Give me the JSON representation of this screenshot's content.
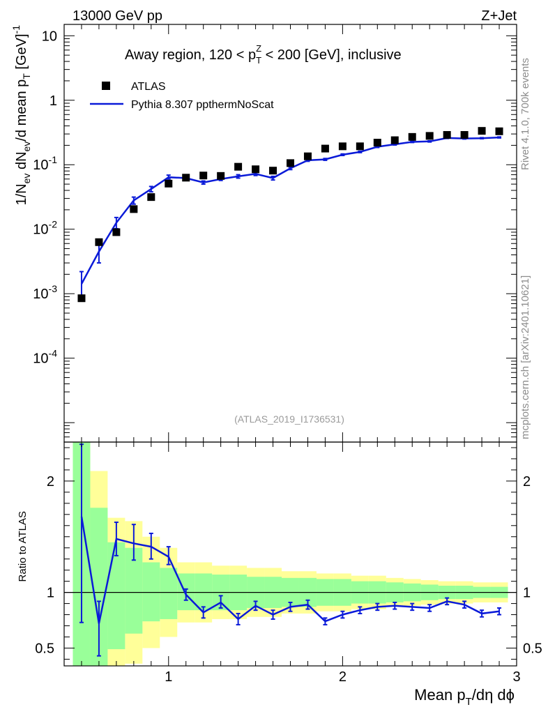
{
  "header": {
    "left": "13000 GeV pp",
    "right": "Z+Jet"
  },
  "plot_title_parts": {
    "pre": "Away region, 120 < p",
    "sup": "Z",
    "sub": "T",
    "post": " < 200 [GeV], inclusive"
  },
  "analysis_id": "(ATLAS_2019_I1736531)",
  "side_labels": {
    "top": "Rivet 4.1.0,  700k events",
    "bottom": "mcplots.cern.ch [arXiv:2401.10621]"
  },
  "colors": {
    "mc": "#0a1ad8",
    "data": "#000000",
    "band_inner": "#99ff99",
    "band_outer": "#ffff99"
  },
  "chart_data": [
    {
      "type": "scatter",
      "panel": "main",
      "yscale": "log",
      "xlim": [
        0.4,
        3.0
      ],
      "ylim": [
        5e-06,
        15
      ],
      "ylabel_parts": [
        "1/N",
        "ev",
        " dN",
        "ev",
        "/d mean p",
        "T",
        " [GeV]",
        "-1"
      ],
      "yticks": [
        {
          "v": 0.0001,
          "base": "10",
          "exp": "-4"
        },
        {
          "v": 0.001,
          "base": "10",
          "exp": "-3"
        },
        {
          "v": 0.01,
          "base": "10",
          "exp": "-2"
        },
        {
          "v": 0.1,
          "base": "10",
          "exp": "-1"
        },
        {
          "v": 1,
          "base": "1",
          "exp": ""
        },
        {
          "v": 10,
          "base": "10",
          "exp": ""
        }
      ],
      "legend": [
        {
          "name": "ATLAS",
          "marker": "square"
        },
        {
          "name": "Pythia 8.307 ppthermNoScat",
          "marker": "line"
        }
      ],
      "legend_position": "top-left",
      "x": [
        0.5,
        0.6,
        0.7,
        0.8,
        0.9,
        1.0,
        1.1,
        1.2,
        1.3,
        1.4,
        1.5,
        1.6,
        1.7,
        1.8,
        1.9,
        2.0,
        2.1,
        2.2,
        2.3,
        2.4,
        2.5,
        2.6,
        2.7,
        2.8,
        2.9
      ],
      "series": [
        {
          "name": "ATLAS",
          "values": [
            0.00085,
            0.0063,
            0.009,
            0.0205,
            0.0315,
            0.051,
            0.063,
            0.068,
            0.067,
            0.093,
            0.085,
            0.081,
            0.106,
            0.135,
            0.178,
            0.193,
            0.193,
            0.22,
            0.24,
            0.27,
            0.28,
            0.29,
            0.29,
            0.335,
            0.33
          ]
        },
        {
          "name": "Pythia 8.307 ppthermNoScat",
          "values": [
            0.00142,
            0.0045,
            0.0126,
            0.028,
            0.042,
            0.064,
            0.062,
            0.053,
            0.06,
            0.066,
            0.072,
            0.062,
            0.088,
            0.117,
            0.121,
            0.143,
            0.158,
            0.19,
            0.207,
            0.226,
            0.23,
            0.26,
            0.255,
            0.258,
            0.265
          ],
          "err_low": [
            0.00058,
            0.0015,
            0.0024,
            0.0035,
            0.004,
            0.004,
            0.003,
            0.003,
            0.003,
            0.004,
            0.004,
            0.004,
            0.004,
            0.004,
            0.004,
            0.004,
            0.004,
            0.005,
            0.005,
            0.005,
            0.005,
            0.005,
            0.005,
            0.005,
            0.005
          ],
          "err_high": [
            0.00078,
            0.0012,
            0.0026,
            0.0035,
            0.004,
            0.005,
            0.003,
            0.003,
            0.003,
            0.004,
            0.004,
            0.004,
            0.004,
            0.004,
            0.004,
            0.004,
            0.004,
            0.005,
            0.005,
            0.005,
            0.005,
            0.005,
            0.005,
            0.005,
            0.005
          ]
        }
      ]
    },
    {
      "type": "line",
      "panel": "ratio",
      "xlim": [
        0.4,
        3.0
      ],
      "ylim": [
        0.34,
        2.35
      ],
      "ylabel": "Ratio to ATLAS",
      "xlabel_parts": [
        "Mean p",
        "T",
        "/dη dϕ"
      ],
      "xticks": [
        {
          "v": 1,
          "label": "1"
        },
        {
          "v": 2,
          "label": "2"
        },
        {
          "v": 3,
          "label": "3"
        }
      ],
      "yticks": [
        {
          "v": 0.5,
          "label": "0.5"
        },
        {
          "v": 1,
          "label": "1"
        },
        {
          "v": 2,
          "label": "2"
        }
      ],
      "x": [
        0.5,
        0.6,
        0.7,
        0.8,
        0.9,
        1.0,
        1.1,
        1.2,
        1.3,
        1.4,
        1.5,
        1.6,
        1.7,
        1.8,
        1.9,
        2.0,
        2.1,
        2.2,
        2.3,
        2.4,
        2.5,
        2.6,
        2.7,
        2.8,
        2.9
      ],
      "bins": [
        [
          0.45,
          0.55
        ],
        [
          0.55,
          0.65
        ],
        [
          0.65,
          0.75
        ],
        [
          0.75,
          0.85
        ],
        [
          0.85,
          0.95
        ],
        [
          0.95,
          1.05
        ],
        [
          1.05,
          1.15
        ],
        [
          1.15,
          1.25
        ],
        [
          1.25,
          1.35
        ],
        [
          1.35,
          1.45
        ],
        [
          1.45,
          1.55
        ],
        [
          1.55,
          1.65
        ],
        [
          1.65,
          1.75
        ],
        [
          1.75,
          1.85
        ],
        [
          1.85,
          1.95
        ],
        [
          1.95,
          2.05
        ],
        [
          2.05,
          2.15
        ],
        [
          2.15,
          2.25
        ],
        [
          2.25,
          2.35
        ],
        [
          2.35,
          2.45
        ],
        [
          2.45,
          2.55
        ],
        [
          2.55,
          2.65
        ],
        [
          2.65,
          2.75
        ],
        [
          2.75,
          2.85
        ],
        [
          2.85,
          2.95
        ]
      ],
      "series": [
        {
          "name": "Pythia 8.307 ppthermNoScat",
          "values": [
            1.68,
            0.72,
            1.48,
            1.44,
            1.41,
            1.32,
            0.98,
            0.82,
            0.91,
            0.76,
            0.88,
            0.8,
            0.87,
            0.89,
            0.74,
            0.8,
            0.84,
            0.87,
            0.88,
            0.87,
            0.86,
            0.92,
            0.89,
            0.81,
            0.83
          ],
          "err_low": [
            0.95,
            0.29,
            0.15,
            0.15,
            0.11,
            0.07,
            0.05,
            0.05,
            0.05,
            0.05,
            0.04,
            0.04,
            0.04,
            0.04,
            0.03,
            0.03,
            0.03,
            0.03,
            0.03,
            0.03,
            0.03,
            0.03,
            0.03,
            0.03,
            0.03
          ],
          "err_high": [
            0.65,
            0.2,
            0.15,
            0.17,
            0.12,
            0.09,
            0.05,
            0.05,
            0.06,
            0.05,
            0.04,
            0.04,
            0.04,
            0.04,
            0.03,
            0.03,
            0.03,
            0.03,
            0.03,
            0.03,
            0.03,
            0.03,
            0.03,
            0.03,
            0.03
          ]
        },
        {
          "name": "ATLAS stat. uncertainty band",
          "low": [
            0.27,
            0.27,
            0.49,
            0.63,
            0.74,
            0.76,
            0.84,
            0.84,
            0.84,
            0.84,
            0.86,
            0.86,
            0.87,
            0.87,
            0.88,
            0.88,
            0.9,
            0.9,
            0.91,
            0.92,
            0.93,
            0.94,
            0.94,
            0.95,
            0.95
          ],
          "high": [
            2.35,
            1.76,
            1.45,
            1.4,
            1.27,
            1.22,
            1.17,
            1.17,
            1.16,
            1.16,
            1.14,
            1.14,
            1.13,
            1.13,
            1.12,
            1.12,
            1.1,
            1.1,
            1.09,
            1.08,
            1.07,
            1.06,
            1.06,
            1.05,
            1.05
          ]
        },
        {
          "name": "ATLAS total uncertainty band",
          "low": [
            0.27,
            0.27,
            0.27,
            0.36,
            0.5,
            0.6,
            0.73,
            0.73,
            0.76,
            0.76,
            0.78,
            0.78,
            0.81,
            0.81,
            0.83,
            0.83,
            0.85,
            0.85,
            0.87,
            0.88,
            0.89,
            0.9,
            0.9,
            0.91,
            0.91
          ],
          "high": [
            2.35,
            2.09,
            1.67,
            1.64,
            1.5,
            1.4,
            1.27,
            1.27,
            1.24,
            1.24,
            1.22,
            1.22,
            1.19,
            1.19,
            1.17,
            1.17,
            1.15,
            1.15,
            1.13,
            1.12,
            1.11,
            1.1,
            1.1,
            1.09,
            1.09
          ]
        }
      ]
    }
  ]
}
